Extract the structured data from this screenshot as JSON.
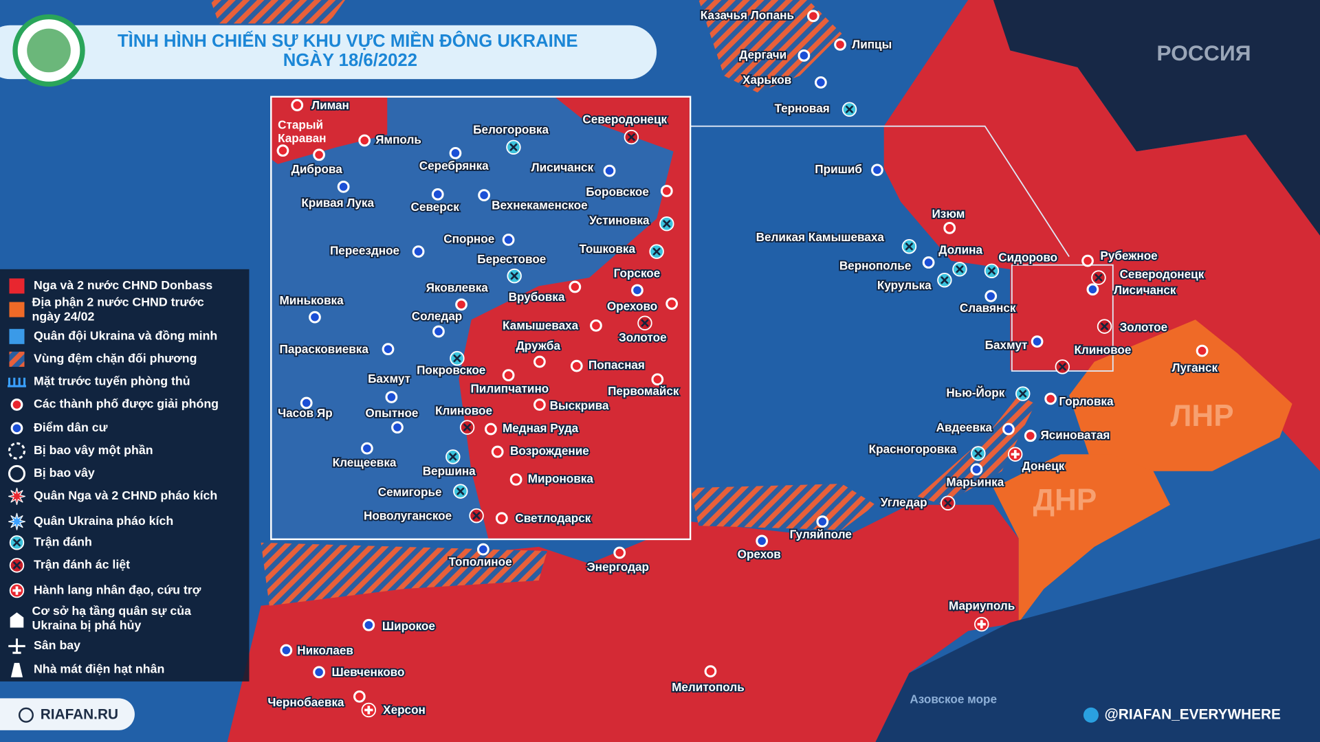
{
  "header": {
    "title": "TÌNH HÌNH CHIẾN SỰ KHU VỰC MIỀN ĐÔNG UKRAINE",
    "date": "NGÀY 18/6/2022"
  },
  "regions": {
    "russia": "РОССИЯ",
    "lnr": "ЛНР",
    "dnr": "ДНР",
    "sea": "Азовское море"
  },
  "legend": {
    "items": [
      "Nga và 2 nước CHND Donbass",
      "Địa phận 2 nước CHND trước ngày 24/02",
      "Quân đội Ukraina và đồng minh",
      "Vùng đệm chặn đối phương",
      "Mặt trước tuyến phòng thủ",
      "Các thành phố được giải phóng",
      "Điểm dân cư",
      "Bị bao vây một phần",
      "Bị bao vây",
      "Quân Nga và 2 CHND pháo kích",
      "Quân Ukraina pháo kích",
      "Trận đánh",
      "Trận đánh ác liệt",
      "Hành lang nhân đạo, cứu trợ",
      "Cơ sở hạ tầng quân sự của Ukraina bị phá hủy",
      "Sân bay",
      "Nhà mát điện hạt nhân"
    ]
  },
  "map": {
    "places": [
      "Казачья Лопань",
      "Дергачи",
      "Липцы",
      "Харьков",
      "Терновая",
      "Пришиб",
      "Изюм",
      "Великая Камышеваха",
      "Долина",
      "Сидорово",
      "Рубежное",
      "Вернополье",
      "Северодонецк",
      "Курулька",
      "Лисичанск",
      "Славянск",
      "Золотое",
      "Бахмут",
      "Клиновое",
      "Луганск",
      "Нью-Йорк",
      "Горловка",
      "Авдеевка",
      "Ясиноватая",
      "Красногоровка",
      "Донецк",
      "Марьинка",
      "Угледар",
      "Гуляйполе",
      "Орехов",
      "Тополиное",
      "Энергодар",
      "Мариуполь",
      "Широкое",
      "Николаев",
      "Шевченково",
      "Мелитополь",
      "Чернобаевка",
      "Херсон"
    ]
  },
  "inset": {
    "places": [
      "Лиман",
      "Старый Караван",
      "Ямполь",
      "Белогоровка",
      "Северодонецк",
      "Серебрянка",
      "Лисичанск",
      "Диброва",
      "Боровское",
      "Кривая Лука",
      "Северск",
      "Вехнекаменское",
      "Устиновка",
      "Спорное",
      "Переездное",
      "Тошковка",
      "Берестовое",
      "Горское",
      "Яковлевка",
      "Врубовка",
      "Миньковка",
      "Орехово",
      "Соледар",
      "Камышеваха",
      "Золотое",
      "Дружба",
      "Парасковиевка",
      "Покровское",
      "Попасная",
      "Бахмут",
      "Пилипчатино",
      "Первомайск",
      "Часов Яр",
      "Опытное",
      "Клиновое",
      "Выскрива",
      "Медная Руда",
      "Клещеевка",
      "Возрождение",
      "Вершина",
      "Мироновка",
      "Семигорье",
      "Новолуганское",
      "Светлодарск"
    ]
  },
  "footer": {
    "site": "RIAFAN.RU",
    "channel": "@RIAFAN_EVERYWHERE"
  }
}
